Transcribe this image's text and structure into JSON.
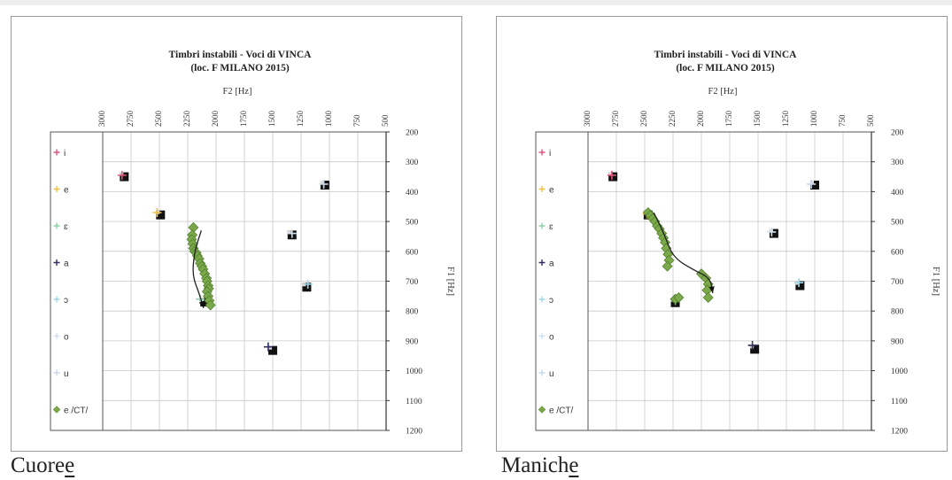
{
  "chart_data": [
    {
      "type": "scatter",
      "title": "Timbri instabili - Voci di VINCA",
      "subtitle": "(loc. F MILANO 2015)",
      "xlabel": "F2 [Hz]",
      "ylabel": "F1 [Hz]",
      "xlim": [
        3000,
        500
      ],
      "ylim": [
        200,
        1200
      ],
      "x_reversed": true,
      "y_reversed": true,
      "x_ticks": [
        3000,
        2750,
        2500,
        2250,
        2000,
        1750,
        1500,
        1250,
        1000,
        750,
        500
      ],
      "y_ticks": [
        200,
        300,
        400,
        500,
        600,
        700,
        800,
        900,
        1000,
        1100,
        1200
      ],
      "grid": true,
      "legend_position": "left",
      "caption": "Cuore",
      "caption_underlined": "e",
      "series": [
        {
          "name": "i",
          "marker": "plus",
          "color": "#e0557a",
          "points": [
            [
              2830,
              345
            ]
          ]
        },
        {
          "name": "e",
          "marker": "plus",
          "color": "#f0c040",
          "points": [
            [
              2520,
              470
            ]
          ]
        },
        {
          "name": "ɛ",
          "marker": "plus",
          "color": "#8fd0a8",
          "points": [
            [
              2140,
              760
            ]
          ]
        },
        {
          "name": "a",
          "marker": "plus",
          "color": "#303060",
          "points": [
            [
              1540,
              920
            ]
          ]
        },
        {
          "name": "ɔ",
          "marker": "plus",
          "color": "#9fd8e8",
          "points": [
            [
              1190,
              710
            ]
          ]
        },
        {
          "name": "o",
          "marker": "plus",
          "color": "#d0e0f0",
          "points": [
            [
              1330,
              540
            ]
          ]
        },
        {
          "name": "u",
          "marker": "plus",
          "color": "#c8d8ec",
          "points": [
            [
              1050,
              375
            ]
          ]
        },
        {
          "name": "e /CT/",
          "marker": "diamond",
          "color": "#7aa84a",
          "points": [
            [
              2200,
              520
            ],
            [
              2210,
              545
            ],
            [
              2215,
              560
            ],
            [
              2205,
              575
            ],
            [
              2200,
              590
            ],
            [
              2190,
              600
            ],
            [
              2175,
              605
            ],
            [
              2165,
              615
            ],
            [
              2150,
              625
            ],
            [
              2140,
              640
            ],
            [
              2125,
              650
            ],
            [
              2115,
              660
            ],
            [
              2100,
              675
            ],
            [
              2085,
              690
            ],
            [
              2080,
              700
            ],
            [
              2070,
              715
            ],
            [
              2065,
              725
            ],
            [
              2080,
              735
            ],
            [
              2070,
              750
            ],
            [
              2060,
              765
            ],
            [
              2050,
              780
            ]
          ]
        }
      ],
      "black_markers": [
        [
          2810,
          350
        ],
        [
          2490,
          478
        ],
        [
          2100,
          770
        ],
        [
          1500,
          932
        ],
        [
          1200,
          720
        ],
        [
          1330,
          545
        ],
        [
          1040,
          378
        ]
      ],
      "arrow_path": [
        [
          2130,
          530
        ],
        [
          2190,
          600
        ],
        [
          2210,
          680
        ],
        [
          2150,
          740
        ],
        [
          2110,
          790
        ]
      ]
    },
    {
      "type": "scatter",
      "title": "Timbri instabili - Voci di VINCA",
      "subtitle": "(loc. F MILANO 2015)",
      "xlabel": "F2 [Hz]",
      "ylabel": "F1 [Hz]",
      "xlim": [
        3000,
        500
      ],
      "ylim": [
        200,
        1200
      ],
      "x_reversed": true,
      "y_reversed": true,
      "x_ticks": [
        3000,
        2750,
        2500,
        2250,
        2000,
        1750,
        1500,
        1250,
        1000,
        750,
        500
      ],
      "y_ticks": [
        200,
        300,
        400,
        500,
        600,
        700,
        800,
        900,
        1000,
        1100,
        1200
      ],
      "grid": true,
      "legend_position": "left",
      "caption": "Manich",
      "caption_underlined": "e",
      "series": [
        {
          "name": "i",
          "marker": "plus",
          "color": "#e0557a",
          "points": [
            [
              2790,
              345
            ]
          ]
        },
        {
          "name": "e",
          "marker": "plus",
          "color": "#f0c040",
          "points": [
            [
              2480,
              475
            ]
          ]
        },
        {
          "name": "ɛ",
          "marker": "plus",
          "color": "#8fd0a8",
          "points": [
            [
              2230,
              765
            ]
          ]
        },
        {
          "name": "a",
          "marker": "plus",
          "color": "#303060",
          "points": [
            [
              1550,
              915
            ]
          ]
        },
        {
          "name": "ɔ",
          "marker": "plus",
          "color": "#9fd8e8",
          "points": [
            [
              1140,
              705
            ]
          ]
        },
        {
          "name": "o",
          "marker": "plus",
          "color": "#d0e0f0",
          "points": [
            [
              1380,
              535
            ]
          ]
        },
        {
          "name": "u",
          "marker": "plus",
          "color": "#c8d8ec",
          "points": [
            [
              1030,
              375
            ]
          ]
        },
        {
          "name": "e /CT/",
          "marker": "diamond",
          "color": "#7aa84a",
          "points": [
            [
              2470,
              470
            ],
            [
              2450,
              480
            ],
            [
              2430,
              490
            ],
            [
              2410,
              500
            ],
            [
              2390,
              515
            ],
            [
              2370,
              525
            ],
            [
              2350,
              540
            ],
            [
              2335,
              555
            ],
            [
              2320,
              570
            ],
            [
              2310,
              590
            ],
            [
              2295,
              610
            ],
            [
              2285,
              630
            ],
            [
              2300,
              650
            ],
            [
              2230,
              760
            ],
            [
              2200,
              755
            ],
            [
              2000,
              675
            ],
            [
              1960,
              690
            ],
            [
              1940,
              710
            ],
            [
              1950,
              730
            ],
            [
              1940,
              755
            ]
          ]
        }
      ],
      "black_markers": [
        [
          2780,
          350
        ],
        [
          2470,
          478
        ],
        [
          2230,
          772
        ],
        [
          1530,
          928
        ],
        [
          1130,
          715
        ],
        [
          1360,
          540
        ],
        [
          1000,
          378
        ]
      ],
      "arrow_path": [
        [
          2420,
          470
        ],
        [
          2330,
          540
        ],
        [
          2250,
          620
        ],
        [
          2080,
          660
        ],
        [
          1920,
          690
        ],
        [
          1900,
          740
        ]
      ]
    }
  ]
}
